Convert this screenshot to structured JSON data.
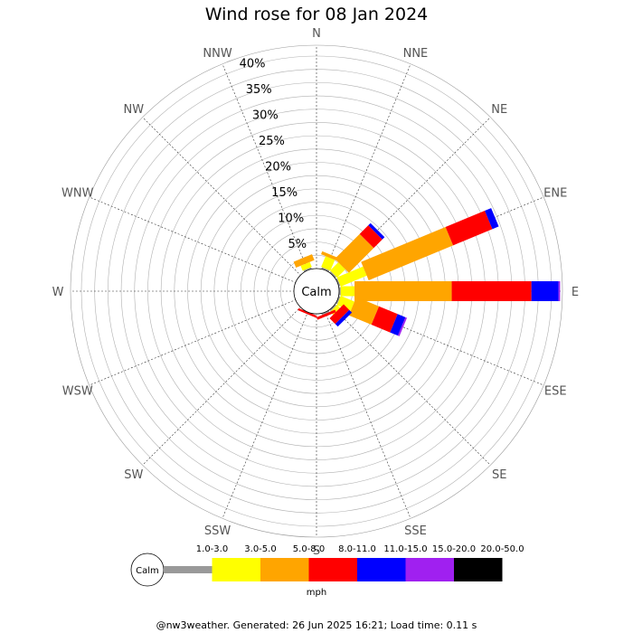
{
  "chart_data": {
    "type": "wind_rose",
    "title": "Wind rose for 08 Jan 2024",
    "directions": [
      "N",
      "NNE",
      "NE",
      "ENE",
      "E",
      "ESE",
      "SE",
      "SSE",
      "S",
      "SSW",
      "SW",
      "WSW",
      "W",
      "WNW",
      "NW",
      "NNW"
    ],
    "radial_ticks": [
      "5%",
      "10%",
      "15%",
      "20%",
      "25%",
      "30%",
      "35%",
      "40%"
    ],
    "radial_max": 40,
    "radial_step": 5,
    "calm_label": "Calm",
    "unit": "mph",
    "speed_bins": [
      {
        "label": "1.0-3.0",
        "color": "#999999"
      },
      {
        "label": "3.0-5.0",
        "color": "#ffff00"
      },
      {
        "label": "5.0-8.0",
        "color": "#ffa500"
      },
      {
        "label": "8.0-11.0",
        "color": "#ff0000"
      },
      {
        "label": "11.0-15.0",
        "color": "#0000ff"
      },
      {
        "label": "15.0-20.0",
        "color": "#a020f0"
      },
      {
        "label": "20.0-50.0",
        "color": "#000000"
      }
    ],
    "data": {
      "N": [
        0,
        0,
        0,
        0,
        0,
        0,
        0
      ],
      "NNE": [
        0.3,
        2.2,
        0.6,
        0,
        0,
        0,
        0
      ],
      "NE": [
        0.3,
        2.2,
        6.6,
        2.3,
        0.6,
        0,
        0
      ],
      "ENE": [
        0.3,
        5.3,
        17.2,
        8.0,
        1.3,
        0,
        0
      ],
      "E": [
        0.3,
        2.6,
        18.3,
        15.0,
        5.1,
        0.3,
        0
      ],
      "ESE": [
        0.3,
        2.8,
        4.6,
        3.8,
        1.6,
        0.3,
        0
      ],
      "SE": [
        0.3,
        0.8,
        0,
        1.5,
        0.7,
        0,
        0
      ],
      "SSE": [
        0.3,
        0,
        0,
        0.5,
        0,
        0,
        0
      ],
      "S": [
        0,
        0,
        0,
        0,
        0,
        0,
        0
      ],
      "SSW": [
        0,
        0,
        0,
        0.4,
        0,
        0,
        0
      ],
      "SW": [
        0,
        0,
        0,
        0,
        0,
        0,
        0
      ],
      "WSW": [
        0,
        0,
        0,
        0,
        0,
        0,
        0
      ],
      "W": [
        0,
        0,
        0,
        0,
        0,
        0,
        0
      ],
      "WNW": [
        0,
        0,
        0,
        0,
        0,
        0,
        0
      ],
      "NW": [
        0,
        0,
        0,
        0,
        0,
        0,
        0
      ],
      "NNW": [
        0.3,
        1.0,
        1.2,
        0,
        0,
        0,
        0
      ]
    },
    "grid": true
  },
  "footer": "@nw3weather. Generated: 26 Jun 2025 16:21; Load time: 0.11 s"
}
